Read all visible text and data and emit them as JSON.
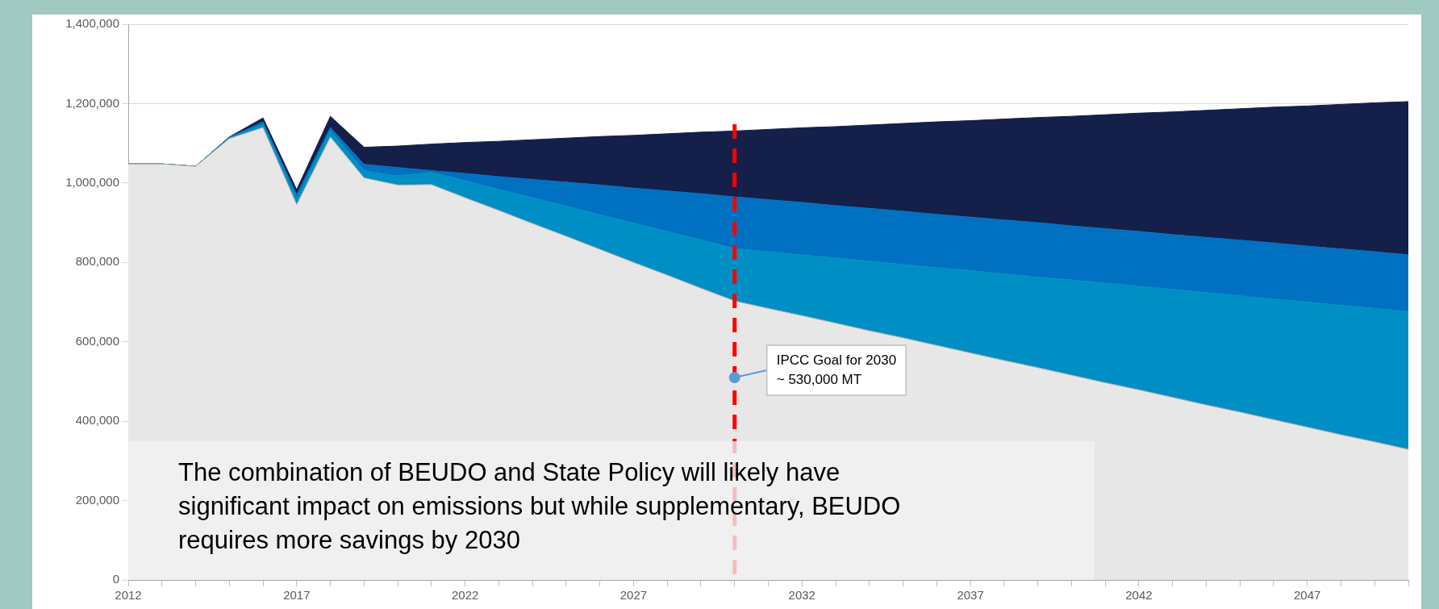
{
  "chart_data": {
    "type": "area",
    "stacked": true,
    "legend": false,
    "grid": "y",
    "marker": "none",
    "x": [
      2012,
      2013,
      2014,
      2015,
      2016,
      2017,
      2018,
      2019,
      2020,
      2021,
      2022,
      2023,
      2024,
      2025,
      2026,
      2027,
      2028,
      2029,
      2030,
      2031,
      2032,
      2033,
      2034,
      2035,
      2036,
      2037,
      2038,
      2039,
      2040,
      2041,
      2042,
      2043,
      2044,
      2045,
      2046,
      2047,
      2048,
      2049,
      2050
    ],
    "xlim": [
      2012,
      2050
    ],
    "xticks": [
      {
        "value": 2012,
        "label": "2012"
      },
      {
        "value": 2013,
        "label": null
      },
      {
        "value": 2014,
        "label": null
      },
      {
        "value": 2015,
        "label": null
      },
      {
        "value": 2016,
        "label": null
      },
      {
        "value": 2017,
        "label": "2017"
      },
      {
        "value": 2018,
        "label": null
      },
      {
        "value": 2019,
        "label": null
      },
      {
        "value": 2020,
        "label": null
      },
      {
        "value": 2021,
        "label": null
      },
      {
        "value": 2022,
        "label": "2022"
      },
      {
        "value": 2023,
        "label": null
      },
      {
        "value": 2024,
        "label": null
      },
      {
        "value": 2025,
        "label": null
      },
      {
        "value": 2026,
        "label": null
      },
      {
        "value": 2027,
        "label": "2027"
      },
      {
        "value": 2028,
        "label": null
      },
      {
        "value": 2029,
        "label": null
      },
      {
        "value": 2030,
        "label": null
      },
      {
        "value": 2031,
        "label": null
      },
      {
        "value": 2032,
        "label": "2032"
      },
      {
        "value": 2033,
        "label": null
      },
      {
        "value": 2034,
        "label": null
      },
      {
        "value": 2035,
        "label": null
      },
      {
        "value": 2036,
        "label": null
      },
      {
        "value": 2037,
        "label": "2037"
      },
      {
        "value": 2038,
        "label": null
      },
      {
        "value": 2039,
        "label": null
      },
      {
        "value": 2040,
        "label": null
      },
      {
        "value": 2041,
        "label": null
      },
      {
        "value": 2042,
        "label": "2042"
      },
      {
        "value": 2043,
        "label": null
      },
      {
        "value": 2044,
        "label": null
      },
      {
        "value": 2045,
        "label": null
      },
      {
        "value": 2046,
        "label": null
      },
      {
        "value": 2047,
        "label": "2047"
      },
      {
        "value": 2048,
        "label": null
      },
      {
        "value": 2049,
        "label": null
      },
      {
        "value": 2050,
        "label": null
      }
    ],
    "ylim": [
      0,
      1400000
    ],
    "yticks": [
      {
        "value": 0,
        "label": "0"
      },
      {
        "value": 200000,
        "label": "200,000"
      },
      {
        "value": 400000,
        "label": "400,000"
      },
      {
        "value": 600000,
        "label": "600,000"
      },
      {
        "value": 800000,
        "label": "800,000"
      },
      {
        "value": 1000000,
        "label": "1,000,000"
      },
      {
        "value": 1200000,
        "label": "1,200,000"
      },
      {
        "value": 1400000,
        "label": "1,400,000"
      }
    ],
    "series": [
      {
        "color": "#e7e7e7",
        "values": [
          1048000,
          1048000,
          1042000,
          1112000,
          1140000,
          946000,
          1116000,
          1013000,
          995000,
          996000,
          963000,
          931000,
          898000,
          866000,
          833000,
          800000,
          768000,
          735000,
          703000,
          684000,
          666000,
          647000,
          628000,
          610000,
          591000,
          572000,
          553000,
          535000,
          516000,
          497000,
          479000,
          460000,
          441000,
          423000,
          404000,
          385000,
          366000,
          348000,
          329000
        ]
      },
      {
        "color": "#008fc4",
        "values": [
          0,
          0,
          0,
          2000,
          8000,
          15000,
          16000,
          18000,
          23000,
          31000,
          43000,
          53000,
          65000,
          76000,
          87000,
          99000,
          110000,
          122000,
          132000,
          143000,
          153000,
          164000,
          175000,
          185000,
          196000,
          207000,
          218000,
          228000,
          240000,
          251000,
          261000,
          272000,
          283000,
          293000,
          304000,
          315000,
          326000,
          336000,
          347000
        ]
      },
      {
        "color": "#0070c0",
        "values": [
          0,
          0,
          0,
          1000,
          6000,
          10000,
          8000,
          16000,
          21000,
          4000,
          18000,
          32000,
          46000,
          60000,
          75000,
          88000,
          102000,
          116000,
          130000,
          131000,
          132000,
          132000,
          133000,
          134000,
          134000,
          135000,
          136000,
          137000,
          136000,
          137000,
          138000,
          138000,
          139000,
          140000,
          141000,
          141000,
          142000,
          143000,
          143000
        ]
      },
      {
        "color": "#141f4a",
        "values": [
          0,
          0,
          0,
          1000,
          10000,
          12000,
          28000,
          43000,
          54000,
          67000,
          78000,
          89000,
          100000,
          111000,
          122000,
          133000,
          144000,
          155000,
          166000,
          177000,
          188000,
          199000,
          210000,
          221000,
          233000,
          243000,
          254000,
          265000,
          276000,
          287000,
          298000,
          309000,
          320000,
          331000,
          342000,
          353000,
          364000,
          375000,
          386000
        ]
      }
    ],
    "ref_lines": [
      {
        "axis": "x",
        "value": 2030,
        "color": "#ff0000",
        "line_style": "dashed"
      }
    ],
    "annotations": [
      {
        "text": "IPCC Goal for 2030\n~ 530,000 MT",
        "x": 2030,
        "y": 510000
      },
      "The combination of BEUDO and State Policy will likely have significant impact on emissions but while supplementary, BEUDO requires more savings by 2030"
    ]
  }
}
